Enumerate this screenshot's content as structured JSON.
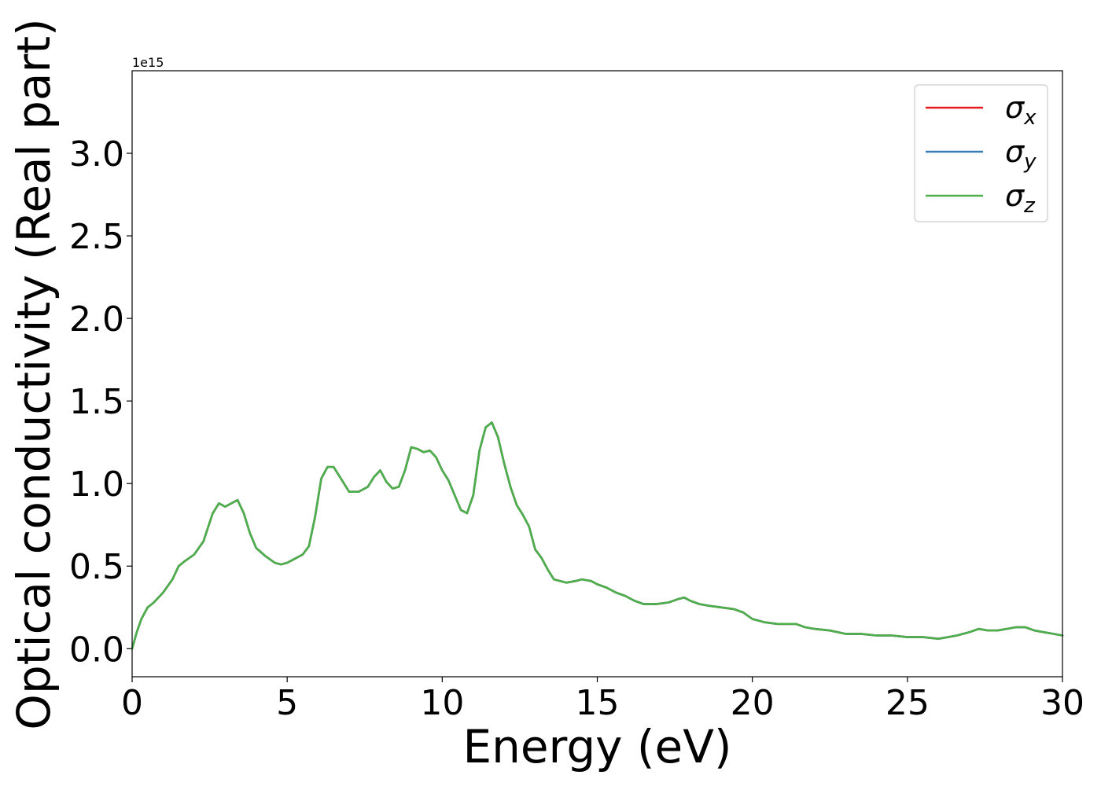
{
  "chart_data": {
    "type": "line",
    "xlabel": "Energy (eV)",
    "ylabel": "Optical conductivity (Real part)",
    "y_offset_label": "1e15",
    "xlim": [
      0,
      30
    ],
    "ylim": [
      -0.17,
      3.5
    ],
    "x_ticks": [
      0,
      5,
      10,
      15,
      20,
      25,
      30
    ],
    "x_tick_labels": [
      "0",
      "5",
      "10",
      "15",
      "20",
      "25",
      "30"
    ],
    "y_ticks": [
      0.0,
      0.5,
      1.0,
      1.5,
      2.0,
      2.5,
      3.0
    ],
    "y_tick_labels": [
      "0.0",
      "0.5",
      "1.0",
      "1.5",
      "2.0",
      "2.5",
      "3.0"
    ],
    "grid": false,
    "legend_position": "top-right",
    "x": [
      0,
      0.15,
      0.3,
      0.5,
      0.7,
      1.0,
      1.3,
      1.5,
      1.7,
      2.0,
      2.3,
      2.6,
      2.8,
      3.0,
      3.2,
      3.4,
      3.6,
      3.8,
      4.0,
      4.3,
      4.6,
      4.8,
      5.0,
      5.2,
      5.5,
      5.7,
      5.9,
      6.1,
      6.3,
      6.5,
      6.7,
      7.0,
      7.3,
      7.6,
      7.8,
      8.0,
      8.2,
      8.4,
      8.6,
      8.8,
      9.0,
      9.2,
      9.4,
      9.6,
      9.8,
      10.0,
      10.2,
      10.4,
      10.6,
      10.8,
      11.0,
      11.2,
      11.4,
      11.6,
      11.8,
      12.0,
      12.2,
      12.4,
      12.6,
      12.8,
      13.0,
      13.2,
      13.4,
      13.6,
      14.0,
      14.3,
      14.5,
      14.8,
      15.0,
      15.3,
      15.6,
      15.9,
      16.2,
      16.5,
      16.9,
      17.3,
      17.6,
      17.8,
      18.0,
      18.3,
      18.6,
      19.0,
      19.4,
      19.7,
      20.0,
      20.4,
      20.8,
      21.1,
      21.4,
      21.7,
      22.0,
      22.5,
      23.0,
      23.5,
      24.0,
      24.5,
      25.0,
      25.5,
      26.0,
      26.3,
      26.6,
      27.0,
      27.3,
      27.6,
      27.9,
      28.2,
      28.5,
      28.8,
      29.1,
      29.4,
      29.7,
      30.0
    ],
    "series": [
      {
        "name": "x",
        "color": "#e41a1c",
        "values": [
          0.0,
          0.1,
          0.18,
          0.25,
          0.28,
          0.34,
          0.42,
          0.5,
          0.53,
          0.57,
          0.65,
          0.82,
          0.88,
          0.86,
          0.88,
          0.9,
          0.82,
          0.7,
          0.61,
          0.56,
          0.52,
          0.51,
          0.52,
          0.54,
          0.57,
          0.62,
          0.8,
          1.03,
          1.1,
          1.1,
          1.04,
          0.95,
          0.95,
          0.98,
          1.04,
          1.08,
          1.01,
          0.97,
          0.98,
          1.08,
          1.22,
          1.21,
          1.19,
          1.2,
          1.16,
          1.08,
          1.02,
          0.93,
          0.84,
          0.82,
          0.93,
          1.2,
          1.34,
          1.37,
          1.28,
          1.12,
          0.98,
          0.87,
          0.81,
          0.74,
          0.6,
          0.55,
          0.48,
          0.42,
          0.4,
          0.41,
          0.42,
          0.41,
          0.39,
          0.37,
          0.34,
          0.32,
          0.29,
          0.27,
          0.27,
          0.28,
          0.3,
          0.31,
          0.29,
          0.27,
          0.26,
          0.25,
          0.24,
          0.22,
          0.18,
          0.16,
          0.15,
          0.15,
          0.15,
          0.13,
          0.12,
          0.11,
          0.09,
          0.09,
          0.08,
          0.08,
          0.07,
          0.07,
          0.06,
          0.07,
          0.08,
          0.1,
          0.12,
          0.11,
          0.11,
          0.12,
          0.13,
          0.13,
          0.11,
          0.1,
          0.09,
          0.08
        ]
      },
      {
        "name": "y",
        "color": "#377eb8",
        "values": [
          0.0,
          0.1,
          0.18,
          0.25,
          0.28,
          0.34,
          0.42,
          0.5,
          0.53,
          0.57,
          0.65,
          0.82,
          0.88,
          0.86,
          0.88,
          0.9,
          0.82,
          0.7,
          0.61,
          0.56,
          0.52,
          0.51,
          0.52,
          0.54,
          0.57,
          0.62,
          0.8,
          1.03,
          1.1,
          1.1,
          1.04,
          0.95,
          0.95,
          0.98,
          1.04,
          1.08,
          1.01,
          0.97,
          0.98,
          1.08,
          1.22,
          1.21,
          1.19,
          1.2,
          1.16,
          1.08,
          1.02,
          0.93,
          0.84,
          0.82,
          0.93,
          1.2,
          1.34,
          1.37,
          1.28,
          1.12,
          0.98,
          0.87,
          0.81,
          0.74,
          0.6,
          0.55,
          0.48,
          0.42,
          0.4,
          0.41,
          0.42,
          0.41,
          0.39,
          0.37,
          0.34,
          0.32,
          0.29,
          0.27,
          0.27,
          0.28,
          0.3,
          0.31,
          0.29,
          0.27,
          0.26,
          0.25,
          0.24,
          0.22,
          0.18,
          0.16,
          0.15,
          0.15,
          0.15,
          0.13,
          0.12,
          0.11,
          0.09,
          0.09,
          0.08,
          0.08,
          0.07,
          0.07,
          0.06,
          0.07,
          0.08,
          0.1,
          0.12,
          0.11,
          0.11,
          0.12,
          0.13,
          0.13,
          0.11,
          0.1,
          0.09,
          0.08
        ]
      },
      {
        "name": "z",
        "color": "#4daf4a",
        "values": [
          0.0,
          0.1,
          0.18,
          0.25,
          0.28,
          0.34,
          0.42,
          0.5,
          0.53,
          0.57,
          0.65,
          0.82,
          0.88,
          0.86,
          0.88,
          0.9,
          0.82,
          0.7,
          0.61,
          0.56,
          0.52,
          0.51,
          0.52,
          0.54,
          0.57,
          0.62,
          0.8,
          1.03,
          1.1,
          1.1,
          1.04,
          0.95,
          0.95,
          0.98,
          1.04,
          1.08,
          1.01,
          0.97,
          0.98,
          1.08,
          1.22,
          1.21,
          1.19,
          1.2,
          1.16,
          1.08,
          1.02,
          0.93,
          0.84,
          0.82,
          0.93,
          1.2,
          1.34,
          1.37,
          1.28,
          1.12,
          0.98,
          0.87,
          0.81,
          0.74,
          0.6,
          0.55,
          0.48,
          0.42,
          0.4,
          0.41,
          0.42,
          0.41,
          0.39,
          0.37,
          0.34,
          0.32,
          0.29,
          0.27,
          0.27,
          0.28,
          0.3,
          0.31,
          0.29,
          0.27,
          0.26,
          0.25,
          0.24,
          0.22,
          0.18,
          0.16,
          0.15,
          0.15,
          0.15,
          0.13,
          0.12,
          0.11,
          0.09,
          0.09,
          0.08,
          0.08,
          0.07,
          0.07,
          0.06,
          0.07,
          0.08,
          0.1,
          0.12,
          0.11,
          0.11,
          0.12,
          0.13,
          0.13,
          0.11,
          0.1,
          0.09,
          0.08
        ]
      }
    ],
    "legend": [
      {
        "symbol": "σ",
        "subscript": "x",
        "color": "#e41a1c"
      },
      {
        "symbol": "σ",
        "subscript": "y",
        "color": "#377eb8"
      },
      {
        "symbol": "σ",
        "subscript": "z",
        "color": "#4daf4a"
      }
    ]
  }
}
